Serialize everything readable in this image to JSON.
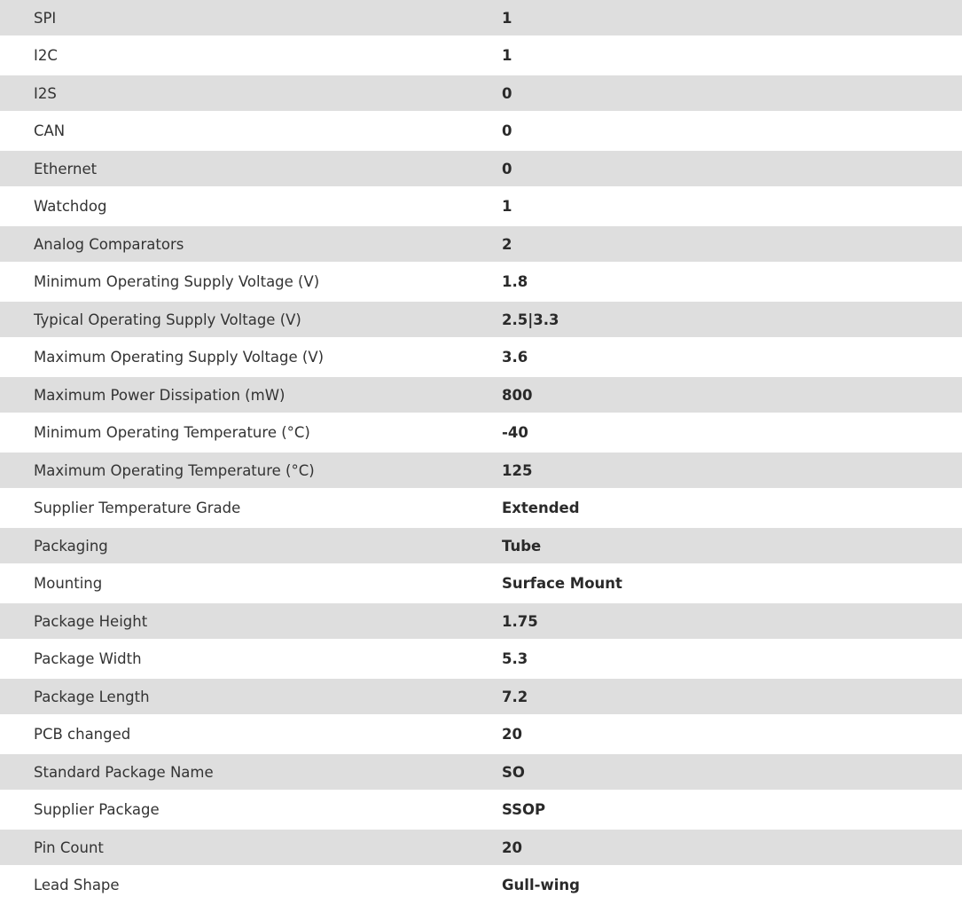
{
  "specs": [
    {
      "label": "SPI",
      "value": "1"
    },
    {
      "label": "I2C",
      "value": "1"
    },
    {
      "label": "I2S",
      "value": "0"
    },
    {
      "label": "CAN",
      "value": "0"
    },
    {
      "label": "Ethernet",
      "value": "0"
    },
    {
      "label": "Watchdog",
      "value": "1"
    },
    {
      "label": "Analog Comparators",
      "value": "2"
    },
    {
      "label": "Minimum Operating Supply Voltage (V)",
      "value": "1.8"
    },
    {
      "label": "Typical Operating Supply Voltage (V)",
      "value": "2.5|3.3"
    },
    {
      "label": "Maximum Operating Supply Voltage (V)",
      "value": "3.6"
    },
    {
      "label": "Maximum Power Dissipation (mW)",
      "value": "800"
    },
    {
      "label": "Minimum Operating Temperature (°C)",
      "value": "-40"
    },
    {
      "label": "Maximum Operating Temperature (°C)",
      "value": "125"
    },
    {
      "label": "Supplier Temperature Grade",
      "value": "Extended"
    },
    {
      "label": "Packaging",
      "value": "Tube"
    },
    {
      "label": "Mounting",
      "value": "Surface Mount"
    },
    {
      "label": "Package Height",
      "value": "1.75"
    },
    {
      "label": "Package Width",
      "value": "5.3"
    },
    {
      "label": "Package Length",
      "value": "7.2"
    },
    {
      "label": "PCB changed",
      "value": "20"
    },
    {
      "label": "Standard Package Name",
      "value": "SO"
    },
    {
      "label": "Supplier Package",
      "value": "SSOP"
    },
    {
      "label": "Pin Count",
      "value": "20"
    },
    {
      "label": "Lead Shape",
      "value": "Gull-wing"
    }
  ]
}
